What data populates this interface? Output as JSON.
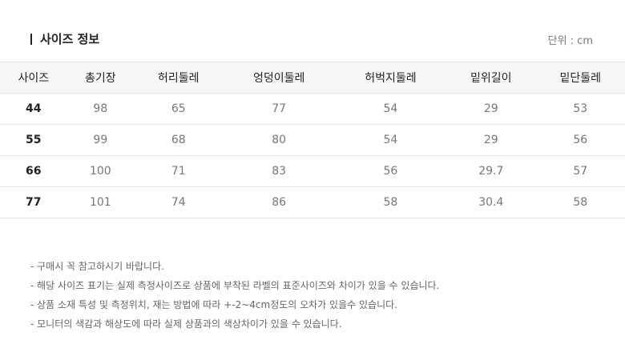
{
  "title": "사이즈 정보",
  "unit": "단위 : cm",
  "headers": [
    "사이즈",
    "총기장",
    "허리둘레",
    "엉덩이둘레",
    "허벅지둘레",
    "밑위길이",
    "밑단둘레"
  ],
  "rows": [
    [
      "44",
      "98",
      "65",
      "77",
      "54",
      "29",
      "53"
    ],
    [
      "55",
      "99",
      "68",
      "80",
      "54",
      "29",
      "56"
    ],
    [
      "66",
      "100",
      "71",
      "83",
      "56",
      "29.7",
      "57"
    ],
    [
      "77",
      "101",
      "74",
      "86",
      "58",
      "30.4",
      "58"
    ]
  ],
  "notes": [
    "- 구매시 꼭 참고하시기 바랍니다.",
    "- 해당 사이즈 표기는 실제 측정사이즈로 상품에 부착된 라벨의 표준사이즈와 차이가 있을 수 있습니다.",
    "- 상품 소재 특성 및 측정위치, 재는 방법에 따라 +-2~4cm정도의 오차가 있을수 있습니다.",
    "- 모니터의 색감과 해상도에 따라 실제 상품과의 색상차이가 있을 수 있습니다."
  ]
}
